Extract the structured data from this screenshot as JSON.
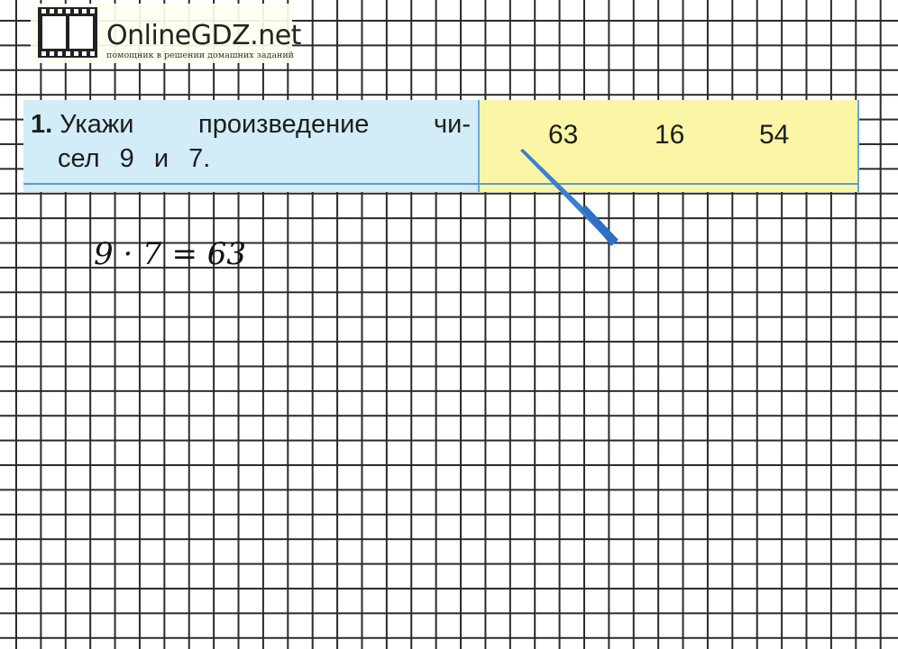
{
  "logo": {
    "title": "OnlineGDZ.net",
    "subtitle": "помощник в решении домашних заданий"
  },
  "task": {
    "number": "1.",
    "line1_words": [
      "Укажи",
      "произведение",
      "чи-"
    ],
    "line2": "сел 9 и 7.",
    "options": [
      "63",
      "16",
      "54"
    ]
  },
  "solution": {
    "equation": "9 · 7 = 63"
  },
  "colors": {
    "question_bg": "#d2ecf8",
    "answer_bg": "#fbf6a6",
    "pointer": "#3b7fd0",
    "rule": "#5b9bd5"
  }
}
